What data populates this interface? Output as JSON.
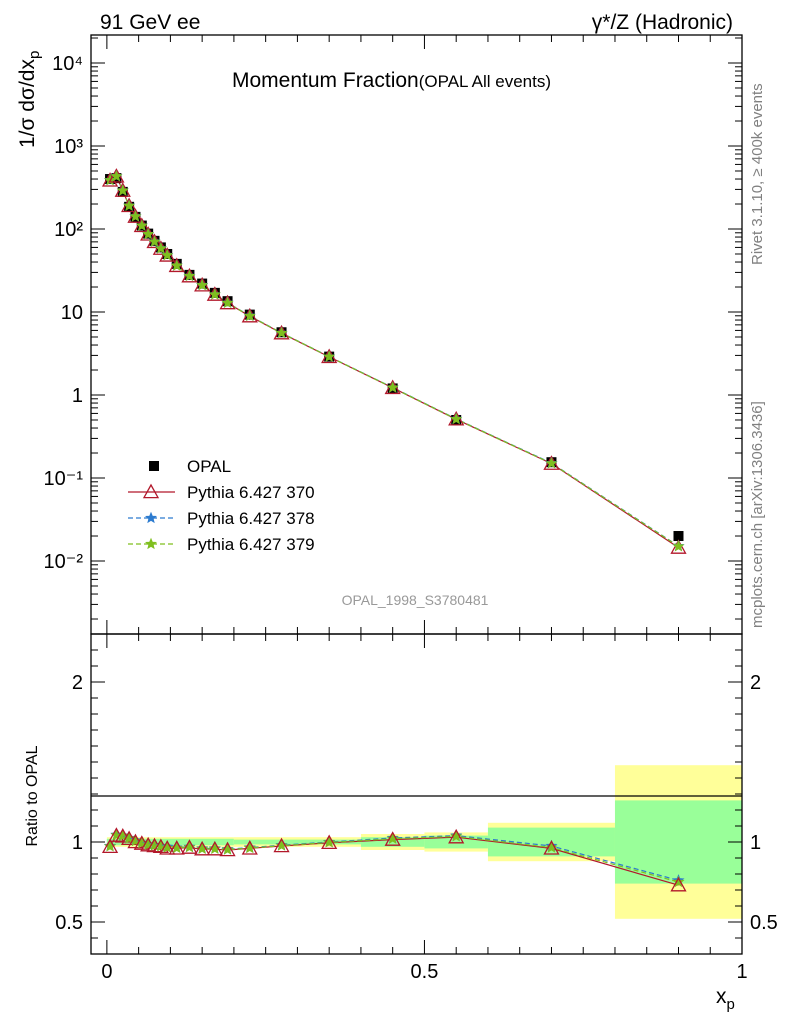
{
  "header": {
    "left": "91 GeV ee",
    "right": "γ*/Z (Hadronic)"
  },
  "side_notes": {
    "rivet": "Rivet 3.1.10, ≥ 400k events",
    "mcplots": "mcplots.cern.ch [arXiv:1306.3436]"
  },
  "colors": {
    "data": "#000000",
    "pythia370": "#b2182b",
    "pythia378": "#2c7bcf",
    "pythia379": "#7fbf1f",
    "band_inner": "#99ff99",
    "band_outer": "#ffff99"
  },
  "chart_data": [
    {
      "type": "scatter",
      "title": "Momentum Fraction",
      "subtitle": "(OPAL All events)",
      "ylabel": "1/σ dσ/dx",
      "ylabel_sub": "p",
      "yscale": "log",
      "ylim": [
        0.002,
        20000
      ],
      "y_ticks": [
        "10⁻²",
        "10⁻¹",
        "1",
        "10",
        "10²",
        "10³",
        "10⁴"
      ],
      "xlim": [
        -0.025,
        1.0
      ],
      "watermark": "OPAL_1998_S3780481",
      "legend": {
        "position": "bottom-left",
        "entries": [
          "OPAL",
          "Pythia 6.427 370",
          "Pythia 6.427 378",
          "Pythia 6.427 379"
        ]
      },
      "x": [
        0.005,
        0.015,
        0.025,
        0.035,
        0.045,
        0.055,
        0.065,
        0.075,
        0.085,
        0.095,
        0.11,
        0.13,
        0.15,
        0.17,
        0.19,
        0.225,
        0.275,
        0.35,
        0.45,
        0.55,
        0.7,
        0.9
      ],
      "series": [
        {
          "name": "OPAL",
          "marker": "square",
          "values": [
            400,
            410,
            280,
            185,
            140,
            110,
            88,
            72,
            60,
            50,
            38,
            28,
            22,
            17,
            13.5,
            9.3,
            5.7,
            2.9,
            1.2,
            0.5,
            0.155,
            0.02
          ]
        },
        {
          "name": "Pythia 6.427 370",
          "marker": "triangle",
          "values": [
            385,
            430,
            290,
            190,
            141,
            109,
            86,
            70,
            58,
            48,
            36,
            27,
            21,
            16.2,
            12.8,
            8.9,
            5.55,
            2.88,
            1.22,
            0.51,
            0.149,
            0.0145
          ]
        },
        {
          "name": "Pythia 6.427 378",
          "marker": "star",
          "values": [
            387,
            432,
            291,
            191,
            142,
            110,
            87,
            70.5,
            58.5,
            48.5,
            36.3,
            27.2,
            21.1,
            16.3,
            12.9,
            9.0,
            5.6,
            2.9,
            1.23,
            0.515,
            0.151,
            0.0151
          ]
        },
        {
          "name": "Pythia 6.427 379",
          "marker": "star",
          "values": [
            386,
            431,
            290,
            190,
            141.5,
            109.5,
            86.5,
            70.2,
            58.2,
            48.2,
            36.1,
            27.1,
            21.0,
            16.2,
            12.85,
            8.95,
            5.58,
            2.89,
            1.225,
            0.512,
            0.15,
            0.015
          ]
        }
      ]
    },
    {
      "type": "line",
      "ylabel": "Ratio to OPAL",
      "xlabel": "x",
      "xlabel_sub": "p",
      "ylim": [
        0.3,
        2.3
      ],
      "y_ticks": [
        "0.5",
        "1",
        "2"
      ],
      "x_ticks": [
        "0",
        "0.5",
        "1"
      ],
      "xlim": [
        -0.025,
        1.0
      ],
      "bands": [
        {
          "x0": 0.0,
          "x1": 0.2,
          "inner": 0.02,
          "outer": 0.03
        },
        {
          "x0": 0.2,
          "x1": 0.4,
          "inner": 0.015,
          "outer": 0.03
        },
        {
          "x0": 0.4,
          "x1": 0.5,
          "inner": 0.03,
          "outer": 0.05
        },
        {
          "x0": 0.5,
          "x1": 0.6,
          "inner": 0.04,
          "outer": 0.06
        },
        {
          "x0": 0.6,
          "x1": 0.8,
          "inner": 0.09,
          "outer": 0.12
        },
        {
          "x0": 0.8,
          "x1": 1.0,
          "inner": 0.26,
          "outer": 0.48
        }
      ],
      "x": [
        0.005,
        0.015,
        0.025,
        0.035,
        0.045,
        0.055,
        0.065,
        0.075,
        0.085,
        0.095,
        0.11,
        0.13,
        0.15,
        0.17,
        0.19,
        0.225,
        0.275,
        0.35,
        0.45,
        0.55,
        0.7,
        0.9
      ],
      "series": [
        {
          "name": "Pythia 6.427 370",
          "values": [
            0.97,
            1.04,
            1.035,
            1.02,
            1.0,
            0.99,
            0.98,
            0.975,
            0.97,
            0.96,
            0.96,
            0.965,
            0.955,
            0.955,
            0.95,
            0.96,
            0.975,
            0.995,
            1.015,
            1.03,
            0.96,
            0.73
          ]
        },
        {
          "name": "Pythia 6.427 378",
          "values": [
            0.975,
            1.045,
            1.04,
            1.025,
            1.01,
            0.995,
            0.985,
            0.98,
            0.975,
            0.97,
            0.965,
            0.97,
            0.96,
            0.96,
            0.955,
            0.965,
            0.98,
            1.0,
            1.025,
            1.04,
            0.975,
            0.76
          ]
        },
        {
          "name": "Pythia 6.427 379",
          "values": [
            0.972,
            1.042,
            1.038,
            1.022,
            1.005,
            0.992,
            0.982,
            0.977,
            0.972,
            0.965,
            0.962,
            0.967,
            0.957,
            0.957,
            0.952,
            0.962,
            0.977,
            0.997,
            1.02,
            1.035,
            0.965,
            0.75
          ]
        }
      ]
    }
  ]
}
